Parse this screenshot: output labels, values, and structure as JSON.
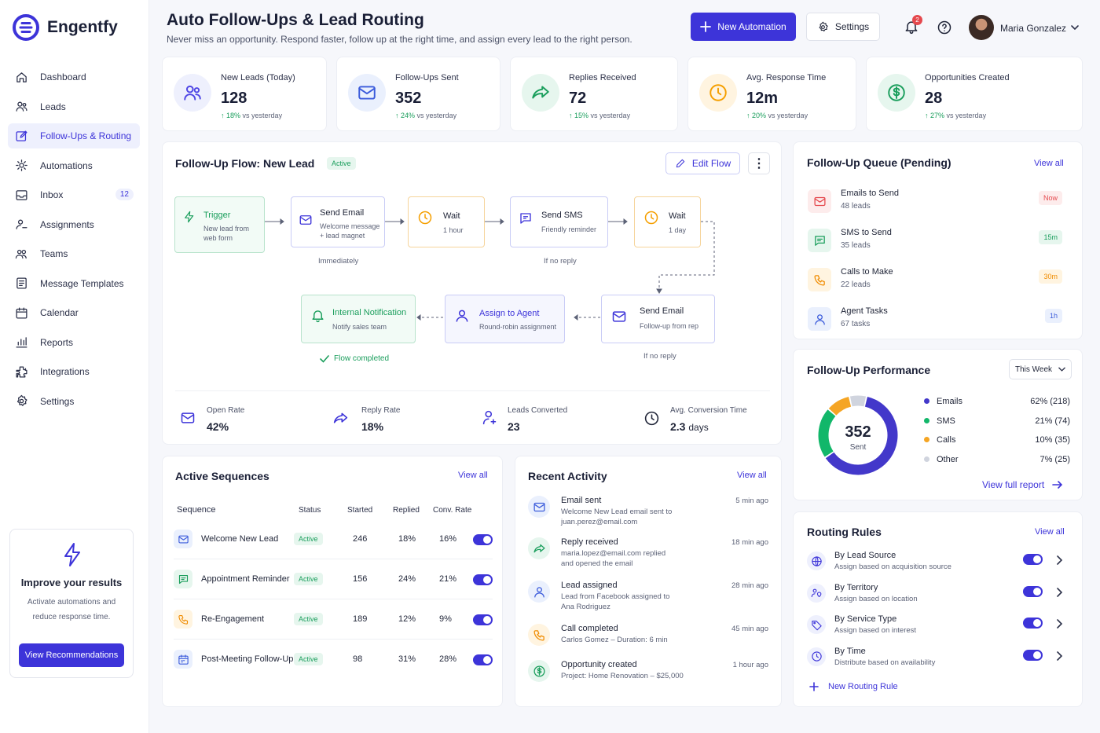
{
  "app": {
    "name": "Engentfy"
  },
  "sidebar": {
    "items": [
      {
        "label": "Dashboard",
        "icon": "home-icon"
      },
      {
        "label": "Leads",
        "icon": "users-icon"
      },
      {
        "label": "Follow-Ups & Routing",
        "icon": "edit-icon",
        "active": true
      },
      {
        "label": "Automations",
        "icon": "gear-icon"
      },
      {
        "label": "Inbox",
        "icon": "inbox-icon",
        "badge": "12"
      },
      {
        "label": "Assignments",
        "icon": "user-check-icon"
      },
      {
        "label": "Teams",
        "icon": "team-icon"
      },
      {
        "label": "Message Templates",
        "icon": "template-icon"
      },
      {
        "label": "Calendar",
        "icon": "calendar-icon"
      },
      {
        "label": "Reports",
        "icon": "bar-chart-icon"
      },
      {
        "label": "Integrations",
        "icon": "puzzle-icon"
      },
      {
        "label": "Settings",
        "icon": "settings-icon"
      }
    ],
    "promo": {
      "title": "Improve your results",
      "text": "Activate automations and reduce response time.",
      "button": "View Recommendations"
    }
  },
  "header": {
    "title": "Auto Follow-Ups & Lead Routing",
    "subtitle": "Never miss an opportunity. Respond faster, follow up at the right time, and assign every lead to the right person.",
    "new_automation": "New Automation",
    "settings": "Settings",
    "notifications": "2",
    "user": "Maria Gonzalez"
  },
  "stats": [
    {
      "label": "New Leads (Today)",
      "value": "128",
      "delta": "18%",
      "delta_text": "vs yesterday",
      "color": "#4f46e5"
    },
    {
      "label": "Follow-Ups Sent",
      "value": "352",
      "delta": "24%",
      "delta_text": "vs yesterday",
      "color": "#3b5bdb"
    },
    {
      "label": "Replies Received",
      "value": "72",
      "delta": "15%",
      "delta_text": "vs yesterday",
      "color": "#1a9e5c"
    },
    {
      "label": "Avg. Response Time",
      "value": "12m",
      "delta": "20%",
      "delta_text": "vs yesterday",
      "color": "#f59f00"
    },
    {
      "label": "Opportunities Created",
      "value": "28",
      "delta": "27%",
      "delta_text": "vs yesterday",
      "color": "#1a9e5c"
    }
  ],
  "flow": {
    "title": "Follow-Up Flow: New Lead",
    "status": "Active",
    "edit": "Edit Flow",
    "nodes": {
      "trigger": {
        "title": "Trigger",
        "sub": "New lead from web form"
      },
      "email1": {
        "title": "Send Email",
        "sub": "Welcome message + lead magnet"
      },
      "wait1": {
        "title": "Wait",
        "sub": "1 hour"
      },
      "sms": {
        "title": "Send SMS",
        "sub": "Friendly reminder"
      },
      "wait2": {
        "title": "Wait",
        "sub": "1 day"
      },
      "email2": {
        "title": "Send Email",
        "sub": "Follow-up from rep"
      },
      "assign": {
        "title": "Assign to Agent",
        "sub": "Round-robin assignment"
      },
      "notify": {
        "title": "Internal Notification",
        "sub": "Notify sales team"
      }
    },
    "captions": {
      "immediately": "Immediately",
      "no_reply1": "If no reply",
      "no_reply2": "If no reply",
      "completed": "Flow completed"
    },
    "metrics": [
      {
        "label": "Open Rate",
        "value": "42%"
      },
      {
        "label": "Reply Rate",
        "value": "18%"
      },
      {
        "label": "Leads Converted",
        "value": "23"
      },
      {
        "label": "Avg. Conversion Time",
        "value": "2.3",
        "unit": "days"
      }
    ]
  },
  "queue": {
    "title": "Follow-Up Queue (Pending)",
    "view_all": "View all",
    "items": [
      {
        "title": "Emails to Send",
        "sub": "48 leads",
        "pill": "Now",
        "color": "#e5484d",
        "bg": "#fdecec"
      },
      {
        "title": "SMS to Send",
        "sub": "35 leads",
        "pill": "15m",
        "color": "#1a9e5c",
        "bg": "#e6f6ee"
      },
      {
        "title": "Calls to Make",
        "sub": "22 leads",
        "pill": "30m",
        "color": "#f08c00",
        "bg": "#fff4e0"
      },
      {
        "title": "Agent Tasks",
        "sub": "67 tasks",
        "pill": "1h",
        "color": "#3b5bdb",
        "bg": "#eaf0fd"
      }
    ]
  },
  "performance": {
    "title": "Follow-Up Performance",
    "range": "This Week",
    "total": "352",
    "total_label": "Sent",
    "link": "View full report",
    "segments": [
      {
        "name": "Emails",
        "pct": 62,
        "count": 218,
        "label": "62% (218)",
        "color": "#4338ca"
      },
      {
        "name": "SMS",
        "pct": 21,
        "count": 74,
        "label": "21% (74)",
        "color": "#12b76a"
      },
      {
        "name": "Calls",
        "pct": 10,
        "count": 35,
        "label": "10% (35)",
        "color": "#f5a524"
      },
      {
        "name": "Other",
        "pct": 7,
        "count": 25,
        "label": "7% (25)",
        "color": "#d0d4de"
      }
    ]
  },
  "sequences": {
    "title": "Active Sequences",
    "view_all": "View all",
    "headers": [
      "Sequence",
      "Status",
      "Started",
      "Replied",
      "Conv. Rate"
    ],
    "rows": [
      {
        "name": "Welcome New Lead",
        "status": "Active",
        "started": "246",
        "replied": "18%",
        "conv": "16%",
        "icon": "mail-icon",
        "color": "#3b5bdb",
        "bg": "#eaf0fd"
      },
      {
        "name": "Appointment Reminder",
        "status": "Active",
        "started": "156",
        "replied": "24%",
        "conv": "21%",
        "icon": "message-icon",
        "color": "#1a9e5c",
        "bg": "#e6f6ee"
      },
      {
        "name": "Re-Engagement",
        "status": "Active",
        "started": "189",
        "replied": "12%",
        "conv": "9%",
        "icon": "phone-icon",
        "color": "#f08c00",
        "bg": "#fff4e0"
      },
      {
        "name": "Post-Meeting Follow-Up",
        "status": "Active",
        "started": "98",
        "replied": "31%",
        "conv": "28%",
        "icon": "calendar-icon",
        "color": "#3b5bdb",
        "bg": "#eaf0fd"
      }
    ]
  },
  "activity": {
    "title": "Recent Activity",
    "view_all": "View all",
    "items": [
      {
        "title": "Email sent",
        "l1": "Welcome New Lead email sent to",
        "l2": "juan.perez@email.com",
        "time": "5 min ago",
        "color": "#3b5bdb",
        "bg": "#eaf0fd"
      },
      {
        "title": "Reply received",
        "l1": "maria.lopez@email.com replied",
        "l2": "and opened the email",
        "time": "18 min ago",
        "color": "#1a9e5c",
        "bg": "#e6f6ee"
      },
      {
        "title": "Lead assigned",
        "l1": "Lead from Facebook assigned to",
        "l2": "Ana Rodriguez",
        "time": "28 min ago",
        "color": "#3b5bdb",
        "bg": "#eaf0fd"
      },
      {
        "title": "Call completed",
        "l1": "Carlos Gomez – Duration: 6 min",
        "l2": "",
        "time": "45 min ago",
        "color": "#f08c00",
        "bg": "#fff4e0"
      },
      {
        "title": "Opportunity created",
        "l1": "Project: Home Renovation – $25,000",
        "l2": "",
        "time": "1 hour ago",
        "color": "#1a9e5c",
        "bg": "#e6f6ee"
      }
    ]
  },
  "routing": {
    "title": "Routing Rules",
    "view_all": "View all",
    "new_rule": "New Routing Rule",
    "rules": [
      {
        "title": "By Lead Source",
        "sub": "Assign based on acquisition source",
        "icon": "globe-icon"
      },
      {
        "title": "By Territory",
        "sub": "Assign based on location",
        "icon": "location-user-icon"
      },
      {
        "title": "By Service Type",
        "sub": "Assign based on interest",
        "icon": "tag-icon"
      },
      {
        "title": "By Time",
        "sub": "Distribute based on availability",
        "icon": "clock-icon"
      }
    ]
  }
}
